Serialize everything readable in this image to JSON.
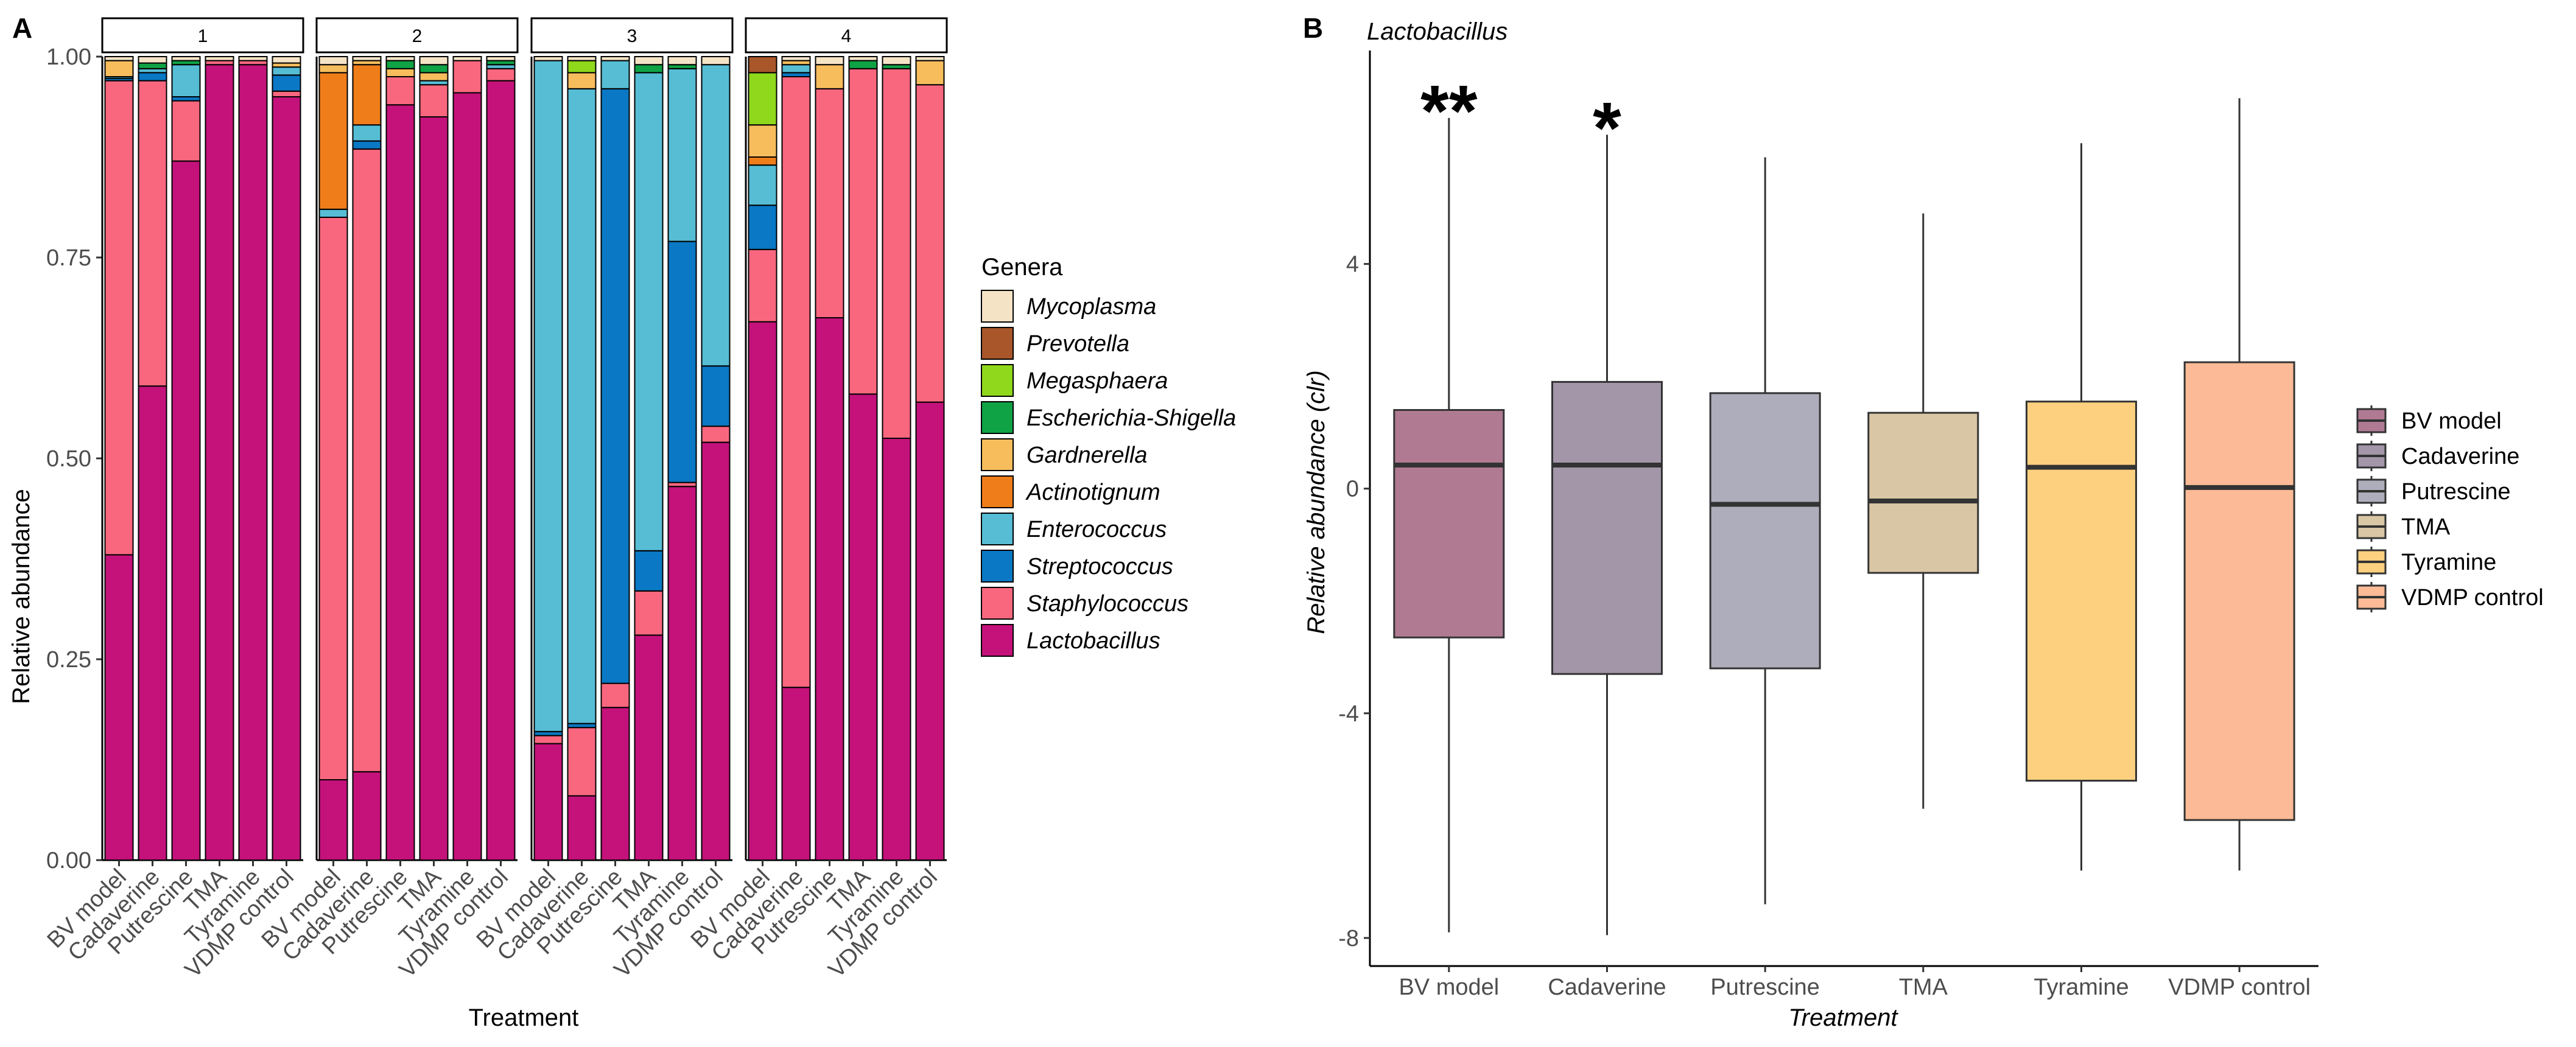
{
  "panel_a": {
    "label": "A",
    "ylabel": "Relative abundance",
    "xlabel": "Treatment",
    "legend_title": "Genera"
  },
  "panel_b": {
    "label": "B",
    "title": "Lactobacillus",
    "ylabel": "Relative abundance (clr)",
    "xlabel": "Treatment"
  },
  "colors": {
    "Mycoplasma": "#f5e3c6",
    "Prevotella": "#a9562a",
    "Megasphaera": "#8fd81c",
    "Escherichia-Shigella": "#0fa345",
    "Gardnerella": "#f7bd5d",
    "Actinotignum": "#ef7d1a",
    "Enterococcus": "#56bdd4",
    "Streptococcus": "#0a78c4",
    "Staphylococcus": "#f9677f",
    "Lactobacillus": "#c4127a",
    "box_BV model": "#b07a93",
    "box_Cadaverine": "#a296a8",
    "box_Putrescine": "#aeadbb",
    "box_TMA": "#d9c6a5",
    "box_Tyramine": "#fdd07f",
    "box_VDMP control": "#fcbb96"
  },
  "chart_data": [
    {
      "type": "bar",
      "stacked": true,
      "title": "",
      "xlabel": "Treatment",
      "ylabel": "Relative abundance",
      "ylim": [
        0,
        1
      ],
      "yticks": [
        "0.00",
        "0.25",
        "0.50",
        "0.75",
        "1.00"
      ],
      "facets": [
        "1",
        "2",
        "3",
        "4"
      ],
      "categories": [
        "BV model",
        "Cadaverine",
        "Putrescine",
        "TMA",
        "Tyramine",
        "VDMP control"
      ],
      "legend_title": "Genera",
      "genera": [
        "Mycoplasma",
        "Prevotella",
        "Megasphaera",
        "Escherichia-Shigella",
        "Gardnerella",
        "Actinotignum",
        "Enterococcus",
        "Streptococcus",
        "Staphylococcus",
        "Lactobacillus"
      ],
      "stack_order": [
        "Lactobacillus",
        "Staphylococcus",
        "Streptococcus",
        "Enterococcus",
        "Actinotignum",
        "Gardnerella",
        "Escherichia-Shigella",
        "Megasphaera",
        "Prevotella",
        "Mycoplasma"
      ],
      "values": {
        "1": [
          {
            "Lactobacillus": 0.38,
            "Staphylococcus": 0.59,
            "Streptococcus": 0.003,
            "Enterococcus": 0.002,
            "Gardnerella": 0.02,
            "Mycoplasma": 0.005
          },
          {
            "Lactobacillus": 0.59,
            "Staphylococcus": 0.38,
            "Streptococcus": 0.01,
            "Enterococcus": 0.005,
            "Escherichia-Shigella": 0.007,
            "Mycoplasma": 0.008
          },
          {
            "Lactobacillus": 0.87,
            "Staphylococcus": 0.075,
            "Streptococcus": 0.005,
            "Enterococcus": 0.04,
            "Escherichia-Shigella": 0.005,
            "Mycoplasma": 0.005
          },
          {
            "Lactobacillus": 0.99,
            "Staphylococcus": 0.005,
            "Mycoplasma": 0.005
          },
          {
            "Lactobacillus": 0.99,
            "Staphylococcus": 0.005,
            "Mycoplasma": 0.005
          },
          {
            "Lactobacillus": 0.95,
            "Staphylococcus": 0.007,
            "Gardnerella": 0.005,
            "Streptococcus": 0.02,
            "Enterococcus": 0.01,
            "Mycoplasma": 0.008
          }
        ],
        "2": [
          {
            "Lactobacillus": 0.1,
            "Staphylococcus": 0.7,
            "Enterococcus": 0.01,
            "Actinotignum": 0.17,
            "Gardnerella": 0.01,
            "Mycoplasma": 0.01
          },
          {
            "Lactobacillus": 0.11,
            "Staphylococcus": 0.775,
            "Streptococcus": 0.01,
            "Enterococcus": 0.02,
            "Actinotignum": 0.075,
            "Gardnerella": 0.005,
            "Mycoplasma": 0.005
          },
          {
            "Lactobacillus": 0.94,
            "Staphylococcus": 0.035,
            "Gardnerella": 0.01,
            "Escherichia-Shigella": 0.01,
            "Mycoplasma": 0.005
          },
          {
            "Lactobacillus": 0.925,
            "Staphylococcus": 0.04,
            "Enterococcus": 0.005,
            "Gardnerella": 0.01,
            "Escherichia-Shigella": 0.01,
            "Mycoplasma": 0.01
          },
          {
            "Lactobacillus": 0.955,
            "Staphylococcus": 0.04,
            "Mycoplasma": 0.005
          },
          {
            "Lactobacillus": 0.97,
            "Staphylococcus": 0.015,
            "Enterococcus": 0.005,
            "Escherichia-Shigella": 0.005,
            "Mycoplasma": 0.005
          }
        ],
        "3": [
          {
            "Lactobacillus": 0.145,
            "Staphylococcus": 0.01,
            "Streptococcus": 0.005,
            "Enterococcus": 0.835,
            "Mycoplasma": 0.005
          },
          {
            "Lactobacillus": 0.08,
            "Staphylococcus": 0.085,
            "Streptococcus": 0.005,
            "Enterococcus": 0.79,
            "Gardnerella": 0.02,
            "Megasphaera": 0.015,
            "Mycoplasma": 0.005
          },
          {
            "Lactobacillus": 0.19,
            "Staphylococcus": 0.03,
            "Streptococcus": 0.74,
            "Enterococcus": 0.035,
            "Mycoplasma": 0.005
          },
          {
            "Lactobacillus": 0.28,
            "Staphylococcus": 0.055,
            "Streptococcus": 0.05,
            "Enterococcus": 0.595,
            "Escherichia-Shigella": 0.01,
            "Mycoplasma": 0.01
          },
          {
            "Lactobacillus": 0.465,
            "Staphylococcus": 0.005,
            "Streptococcus": 0.3,
            "Enterococcus": 0.215,
            "Escherichia-Shigella": 0.005,
            "Mycoplasma": 0.01
          },
          {
            "Lactobacillus": 0.52,
            "Staphylococcus": 0.02,
            "Streptococcus": 0.075,
            "Enterococcus": 0.375,
            "Mycoplasma": 0.01
          }
        ],
        "4": [
          {
            "Lactobacillus": 0.67,
            "Staphylococcus": 0.09,
            "Streptococcus": 0.055,
            "Enterococcus": 0.05,
            "Actinotignum": 0.01,
            "Gardnerella": 0.04,
            "Megasphaera": 0.065,
            "Prevotella": 0.02
          },
          {
            "Lactobacillus": 0.215,
            "Staphylococcus": 0.76,
            "Streptococcus": 0.005,
            "Enterococcus": 0.01,
            "Gardnerella": 0.005,
            "Mycoplasma": 0.005
          },
          {
            "Lactobacillus": 0.675,
            "Staphylococcus": 0.285,
            "Gardnerella": 0.03,
            "Mycoplasma": 0.01
          },
          {
            "Lactobacillus": 0.58,
            "Staphylococcus": 0.405,
            "Escherichia-Shigella": 0.01,
            "Mycoplasma": 0.005
          },
          {
            "Lactobacillus": 0.525,
            "Staphylococcus": 0.46,
            "Escherichia-Shigella": 0.005,
            "Mycoplasma": 0.01
          },
          {
            "Lactobacillus": 0.57,
            "Staphylococcus": 0.395,
            "Gardnerella": 0.03,
            "Mycoplasma": 0.005
          }
        ]
      }
    },
    {
      "type": "box",
      "title": "Lactobacillus",
      "xlabel": "Treatment",
      "ylabel": "Relative abundance (clr)",
      "ylim": [
        -8.5,
        7.8
      ],
      "yticks": [
        "-8",
        "-4",
        "0",
        "4"
      ],
      "categories": [
        "BV model",
        "Cadaverine",
        "Putrescine",
        "TMA",
        "Tyramine",
        "VDMP control"
      ],
      "boxes": [
        {
          "name": "BV model",
          "min": -7.9,
          "q1": -2.65,
          "median": 0.42,
          "q3": 1.4,
          "max": 6.6,
          "sig": "**"
        },
        {
          "name": "Cadaverine",
          "min": -7.95,
          "q1": -3.3,
          "median": 0.42,
          "q3": 1.9,
          "max": 6.3,
          "sig": "*"
        },
        {
          "name": "Putrescine",
          "min": -7.4,
          "q1": -3.2,
          "median": -0.28,
          "q3": 1.7,
          "max": 5.9,
          "sig": ""
        },
        {
          "name": "TMA",
          "min": -5.7,
          "q1": -1.5,
          "median": -0.22,
          "q3": 1.35,
          "max": 4.9,
          "sig": ""
        },
        {
          "name": "Tyramine",
          "min": -6.8,
          "q1": -5.2,
          "median": 0.38,
          "q3": 1.55,
          "max": 6.15,
          "sig": ""
        },
        {
          "name": "VDMP control",
          "min": -6.8,
          "q1": -5.9,
          "median": 0.02,
          "q3": 2.25,
          "max": 6.95,
          "sig": ""
        }
      ],
      "legend": [
        "BV model",
        "Cadaverine",
        "Putrescine",
        "TMA",
        "Tyramine",
        "VDMP control"
      ]
    }
  ]
}
